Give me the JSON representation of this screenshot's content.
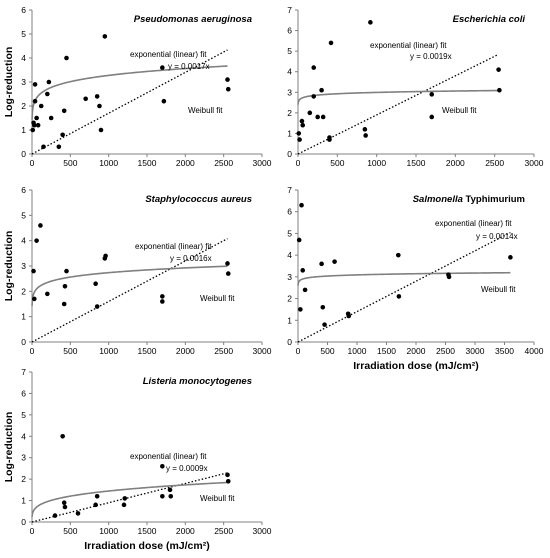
{
  "chart_data": [
    {
      "type": "scatter",
      "title": "Pseudomonas aeruginosa",
      "title_italic": true,
      "ylabel": "Log-reduction",
      "xlabel": "",
      "xlim": [
        0,
        3000
      ],
      "ylim": [
        0,
        6
      ],
      "xticks": [
        0,
        500,
        1000,
        1500,
        2000,
        2500,
        3000
      ],
      "yticks": [
        0,
        1,
        2,
        3,
        4,
        5,
        6
      ],
      "points": [
        [
          10,
          1.0
        ],
        [
          20,
          1.3
        ],
        [
          30,
          1.2
        ],
        [
          40,
          2.2
        ],
        [
          40,
          2.9
        ],
        [
          60,
          1.5
        ],
        [
          80,
          1.2
        ],
        [
          120,
          2.0
        ],
        [
          150,
          0.3
        ],
        [
          200,
          2.5
        ],
        [
          220,
          3.0
        ],
        [
          250,
          1.5
        ],
        [
          350,
          0.3
        ],
        [
          400,
          0.8
        ],
        [
          420,
          1.8
        ],
        [
          450,
          4.0
        ],
        [
          700,
          2.3
        ],
        [
          850,
          2.4
        ],
        [
          880,
          2.0
        ],
        [
          900,
          1.0
        ],
        [
          950,
          4.9
        ],
        [
          1700,
          3.6
        ],
        [
          1720,
          2.2
        ],
        [
          2550,
          3.1
        ],
        [
          2560,
          2.7
        ]
      ],
      "linear_fit": {
        "slope": 0.0017,
        "x_end": 2550
      },
      "weibull_fit": {
        "a": 1.43,
        "b": 0.12
      },
      "linear_label": "exponential (linear) fit",
      "linear_eq": "y = 0.0017x",
      "weibull_label": "Weibull fit"
    },
    {
      "type": "scatter",
      "title": "Escherichia coli",
      "title_italic": true,
      "ylabel": "",
      "xlabel": "",
      "xlim": [
        0,
        3000
      ],
      "ylim": [
        0,
        7
      ],
      "xticks": [
        0,
        500,
        1000,
        1500,
        2000,
        2500,
        3000
      ],
      "yticks": [
        0,
        1,
        2,
        3,
        4,
        5,
        6,
        7
      ],
      "points": [
        [
          10,
          1.0
        ],
        [
          20,
          0.7
        ],
        [
          50,
          1.6
        ],
        [
          60,
          1.4
        ],
        [
          150,
          2.0
        ],
        [
          200,
          4.2
        ],
        [
          200,
          2.8
        ],
        [
          250,
          1.8
        ],
        [
          300,
          3.1
        ],
        [
          320,
          1.8
        ],
        [
          400,
          0.8
        ],
        [
          400,
          0.7
        ],
        [
          420,
          5.4
        ],
        [
          850,
          1.2
        ],
        [
          860,
          0.9
        ],
        [
          920,
          6.4
        ],
        [
          1700,
          2.9
        ],
        [
          1700,
          1.8
        ],
        [
          2550,
          4.1
        ],
        [
          2560,
          3.1
        ]
      ],
      "linear_fit": {
        "slope": 0.0019,
        "x_end": 2550
      },
      "weibull_fit": {
        "a": 2.4,
        "b": 0.032
      },
      "linear_label": "exponential (linear) fit",
      "linear_eq": "y = 0.0019x",
      "weibull_label": "Weibull fit"
    },
    {
      "type": "scatter",
      "title": "Staphylococcus aureus",
      "title_italic": true,
      "ylabel": "Log-reduction",
      "xlabel": "",
      "xlim": [
        0,
        3000
      ],
      "ylim": [
        0,
        6
      ],
      "xticks": [
        0,
        500,
        1000,
        1500,
        2000,
        2500,
        3000
      ],
      "yticks": [
        0,
        1,
        2,
        3,
        4,
        5,
        6
      ],
      "points": [
        [
          20,
          2.8
        ],
        [
          30,
          1.7
        ],
        [
          60,
          4.0
        ],
        [
          110,
          4.6
        ],
        [
          200,
          1.9
        ],
        [
          420,
          1.5
        ],
        [
          430,
          2.2
        ],
        [
          450,
          2.8
        ],
        [
          830,
          2.3
        ],
        [
          850,
          1.4
        ],
        [
          950,
          3.3
        ],
        [
          960,
          3.4
        ],
        [
          1700,
          1.8
        ],
        [
          1700,
          1.6
        ],
        [
          2550,
          3.1
        ],
        [
          2560,
          2.7
        ]
      ],
      "linear_fit": {
        "slope": 0.0016,
        "x_end": 2550
      },
      "weibull_fit": {
        "a": 1.42,
        "b": 0.095
      },
      "linear_label": "exponential (linear) fit",
      "linear_eq": "y = 0.0016x",
      "weibull_label": "Weibull fit"
    },
    {
      "type": "scatter",
      "title": "Salmonella Typhimurium",
      "title_italic_word": "Salmonella",
      "title_rest": " Typhimurium",
      "ylabel": "",
      "xlabel": "Irradiation dose (mJ/cm²)",
      "xlim": [
        0,
        4000
      ],
      "ylim": [
        0,
        7
      ],
      "xticks": [
        0,
        500,
        1000,
        1500,
        2000,
        2500,
        3000,
        3500,
        4000
      ],
      "yticks": [
        0,
        1,
        2,
        3,
        4,
        5,
        6,
        7
      ],
      "points": [
        [
          20,
          4.7
        ],
        [
          40,
          1.5
        ],
        [
          60,
          6.3
        ],
        [
          80,
          3.3
        ],
        [
          120,
          2.4
        ],
        [
          400,
          3.6
        ],
        [
          420,
          1.6
        ],
        [
          450,
          0.8
        ],
        [
          620,
          3.7
        ],
        [
          850,
          1.3
        ],
        [
          860,
          1.2
        ],
        [
          1700,
          4.0
        ],
        [
          1710,
          2.1
        ],
        [
          2550,
          3.1
        ],
        [
          2560,
          3.0
        ],
        [
          3600,
          3.9
        ]
      ],
      "linear_fit": {
        "slope": 0.0014,
        "x_end": 3600
      },
      "weibull_fit": {
        "a": 2.6,
        "b": 0.025
      },
      "linear_label": "exponential (linear) fit",
      "linear_eq": "y = 0.0014x",
      "weibull_label": "Weibull fit"
    },
    {
      "type": "scatter",
      "title": "Listeria monocytogenes",
      "title_italic": true,
      "ylabel": "Log-reduction",
      "xlabel": "Irradiation dose (mJ/cm²)",
      "xlim": [
        0,
        3000
      ],
      "ylim": [
        0,
        7
      ],
      "xticks": [
        0,
        500,
        1000,
        1500,
        2000,
        2500,
        3000
      ],
      "yticks": [
        0,
        1,
        2,
        3,
        4,
        5,
        6,
        7
      ],
      "points": [
        [
          300,
          0.3
        ],
        [
          400,
          4.0
        ],
        [
          420,
          0.9
        ],
        [
          430,
          0.7
        ],
        [
          600,
          0.4
        ],
        [
          830,
          0.8
        ],
        [
          850,
          1.2
        ],
        [
          1200,
          0.8
        ],
        [
          1210,
          1.1
        ],
        [
          1700,
          2.6
        ],
        [
          1700,
          1.2
        ],
        [
          1800,
          1.5
        ],
        [
          1810,
          1.2
        ],
        [
          2550,
          2.2
        ],
        [
          2560,
          1.9
        ]
      ],
      "linear_fit": {
        "slope": 0.0009,
        "x_end": 2550
      },
      "weibull_fit": {
        "a": 0.24,
        "b": 0.26
      },
      "linear_label": "exponential (linear) fit",
      "linear_eq": "y = 0.0009x",
      "weibull_label": "Weibull fit"
    }
  ],
  "colors": {
    "axis": "#808080",
    "points": "#000000",
    "weibull_curve": "#808080",
    "linear_line": "#000000"
  }
}
